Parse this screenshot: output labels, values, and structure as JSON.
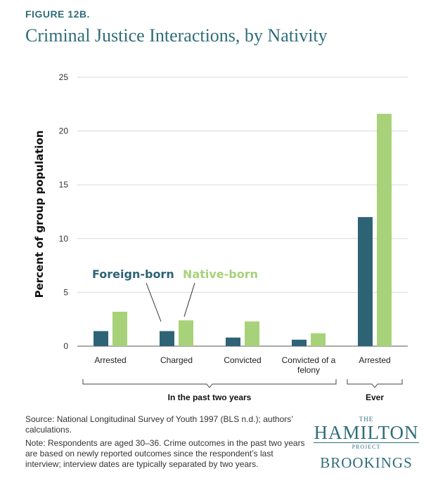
{
  "figure_label": "FIGURE 12B.",
  "title": "Criminal Justice Interactions, by Nativity",
  "colors": {
    "foreign": "#2e6376",
    "native": "#a8d27a",
    "title": "#2f6d7a"
  },
  "chart_data": {
    "type": "bar",
    "categories": [
      "Arrested",
      "Charged",
      "Convicted",
      "Convicted of a felony",
      "Arrested"
    ],
    "category_lines": [
      [
        "Arrested"
      ],
      [
        "Charged"
      ],
      [
        "Convicted"
      ],
      [
        "Convicted of a",
        "felony"
      ],
      [
        "Arrested"
      ]
    ],
    "series": [
      {
        "name": "Foreign-born",
        "values": [
          1.4,
          1.4,
          0.8,
          0.6,
          12.0
        ]
      },
      {
        "name": "Native-born",
        "values": [
          3.2,
          2.4,
          2.3,
          1.2,
          21.6
        ]
      }
    ],
    "ylabel": "Percent of group population",
    "ylim": [
      0,
      25
    ],
    "yticks": [
      0,
      5,
      10,
      15,
      20,
      25
    ],
    "groups": [
      {
        "label": "In the past two years",
        "categories": [
          0,
          1,
          2,
          3
        ]
      },
      {
        "label": "Ever",
        "categories": [
          4
        ]
      }
    ],
    "legend_placement": "inside-left annotation",
    "grid": true
  },
  "notes": {
    "source": "Source: National Longitudinal Survey of Youth 1997 (BLS n.d.); authors’ calculations.",
    "note": "Note: Respondents are aged 30–36. Crime outcomes in the past two years are based on newly reported outcomes since the respondent’s last interview; interview dates are typically separated by two years."
  },
  "logo": {
    "the": "THE",
    "hamilton": "HAMILTON",
    "project": "PROJECT",
    "brookings": "BROOKINGS"
  }
}
